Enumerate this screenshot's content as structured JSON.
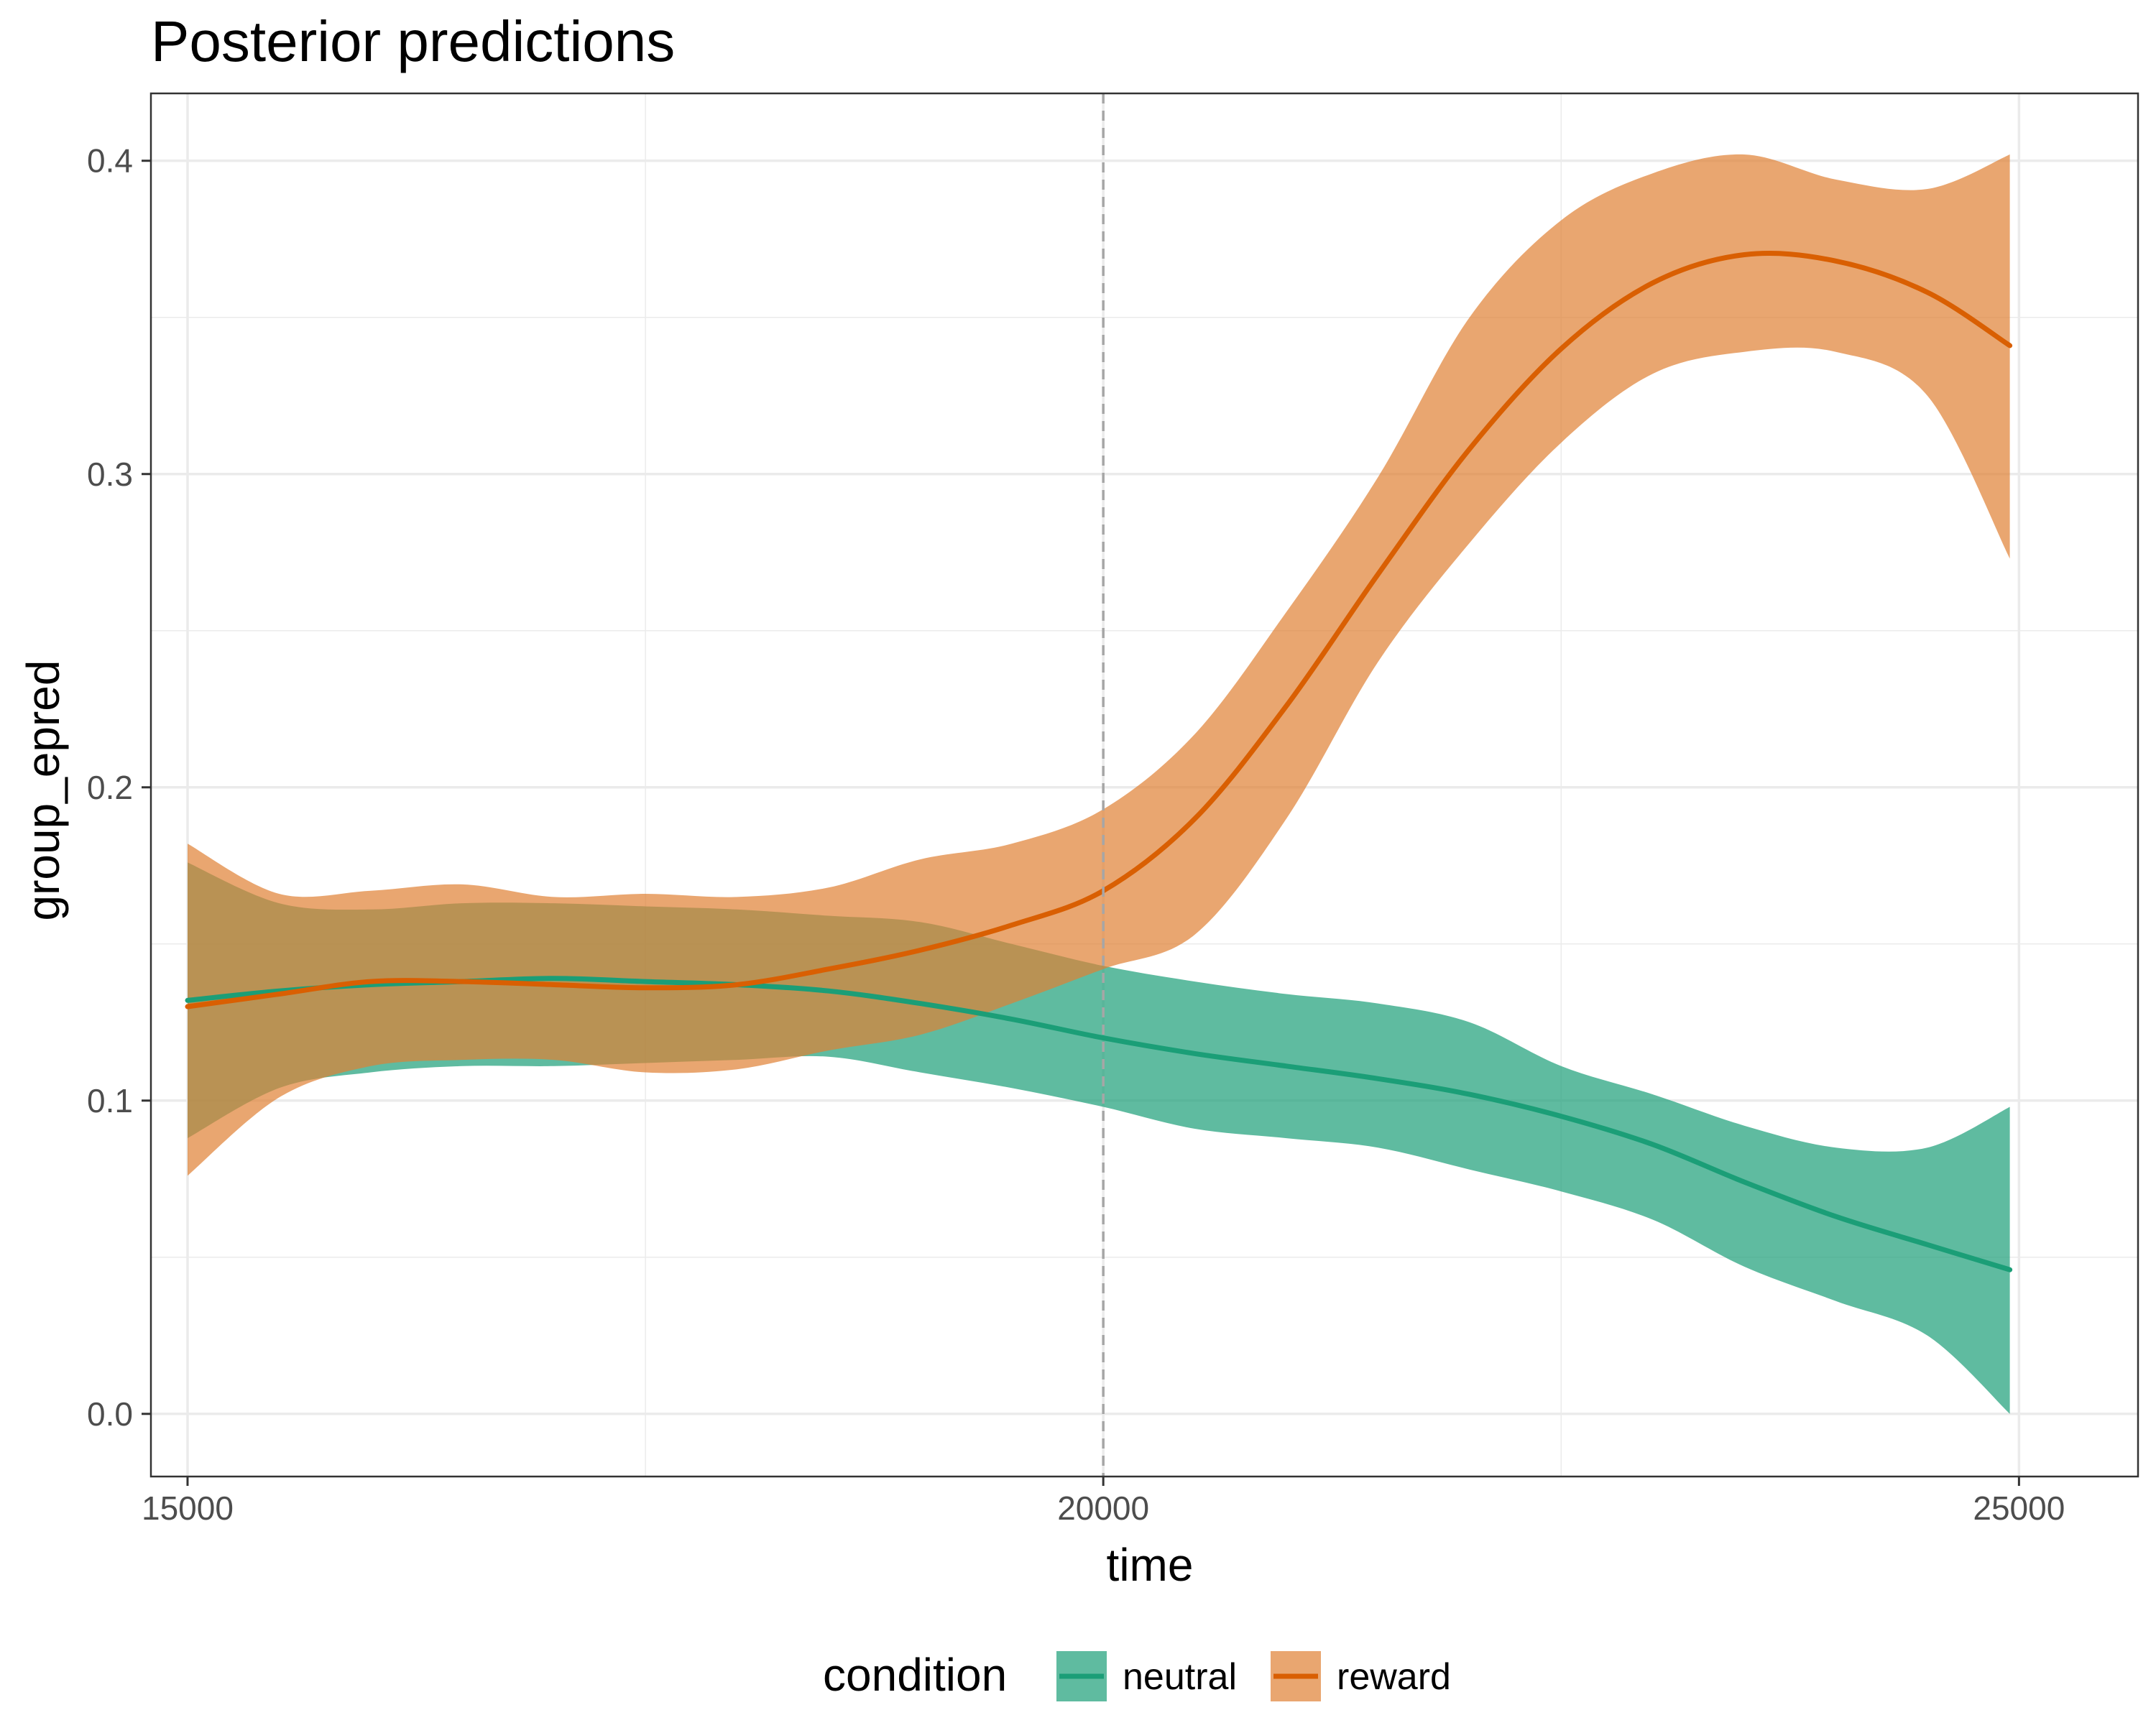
{
  "chart_data": {
    "type": "area",
    "title": "Posterior predictions",
    "xlabel": "time",
    "ylabel": "group_epred",
    "xlim": [
      14800,
      25650
    ],
    "ylim": [
      -0.02,
      0.4215
    ],
    "x_major_ticks": [
      15000,
      20000,
      25000
    ],
    "x_tick_labels": [
      "15000",
      "20000",
      "25000"
    ],
    "x_minor_ticks": [
      17500,
      22500
    ],
    "y_major_ticks": [
      0.0,
      0.1,
      0.2,
      0.3,
      0.4
    ],
    "y_tick_labels": [
      "0.0",
      "0.1",
      "0.2",
      "0.3",
      "0.4"
    ],
    "y_minor_ticks": [
      0.05,
      0.15,
      0.25,
      0.35
    ],
    "grid": true,
    "vline": {
      "x": 20000,
      "style": "dashed",
      "color": "#a6a6a6"
    },
    "legend": {
      "title": "condition",
      "position": "bottom"
    },
    "series": [
      {
        "name": "neutral",
        "color": "#1b9e77",
        "fill": "#1b9e77",
        "x": [
          15000,
          15500,
          16000,
          16500,
          17000,
          17500,
          18000,
          18500,
          19000,
          19500,
          20000,
          20500,
          21000,
          21500,
          22000,
          22500,
          23000,
          23500,
          24000,
          24500,
          24950
        ],
        "mean": [
          0.132,
          0.135,
          0.137,
          0.138,
          0.139,
          0.138,
          0.137,
          0.135,
          0.131,
          0.126,
          0.12,
          0.115,
          0.111,
          0.107,
          0.102,
          0.095,
          0.086,
          0.074,
          0.063,
          0.054,
          0.046
        ],
        "lower": [
          0.088,
          0.104,
          0.109,
          0.111,
          0.111,
          0.112,
          0.113,
          0.114,
          0.109,
          0.104,
          0.098,
          0.091,
          0.088,
          0.085,
          0.078,
          0.071,
          0.062,
          0.047,
          0.036,
          0.025,
          0.0
        ],
        "upper": [
          0.176,
          0.163,
          0.161,
          0.163,
          0.163,
          0.162,
          0.161,
          0.159,
          0.157,
          0.15,
          0.143,
          0.138,
          0.134,
          0.131,
          0.125,
          0.111,
          0.102,
          0.092,
          0.085,
          0.085,
          0.098
        ]
      },
      {
        "name": "reward",
        "color": "#d95f02",
        "fill": "#e08033",
        "x": [
          15000,
          15500,
          16000,
          16500,
          17000,
          17500,
          18000,
          18500,
          19000,
          19500,
          20000,
          20500,
          21000,
          21500,
          22000,
          22500,
          23000,
          23500,
          24000,
          24500,
          24950
        ],
        "mean": [
          0.13,
          0.134,
          0.138,
          0.138,
          0.137,
          0.136,
          0.137,
          0.142,
          0.148,
          0.156,
          0.167,
          0.19,
          0.226,
          0.268,
          0.308,
          0.34,
          0.361,
          0.37,
          0.368,
          0.358,
          0.341
        ],
        "lower": [
          0.076,
          0.101,
          0.111,
          0.113,
          0.113,
          0.109,
          0.11,
          0.116,
          0.121,
          0.131,
          0.142,
          0.153,
          0.19,
          0.24,
          0.278,
          0.31,
          0.332,
          0.339,
          0.339,
          0.325,
          0.273
        ],
        "upper": [
          0.182,
          0.166,
          0.167,
          0.169,
          0.165,
          0.166,
          0.165,
          0.168,
          0.177,
          0.182,
          0.193,
          0.217,
          0.256,
          0.299,
          0.35,
          0.381,
          0.396,
          0.402,
          0.394,
          0.391,
          0.402
        ]
      }
    ]
  }
}
